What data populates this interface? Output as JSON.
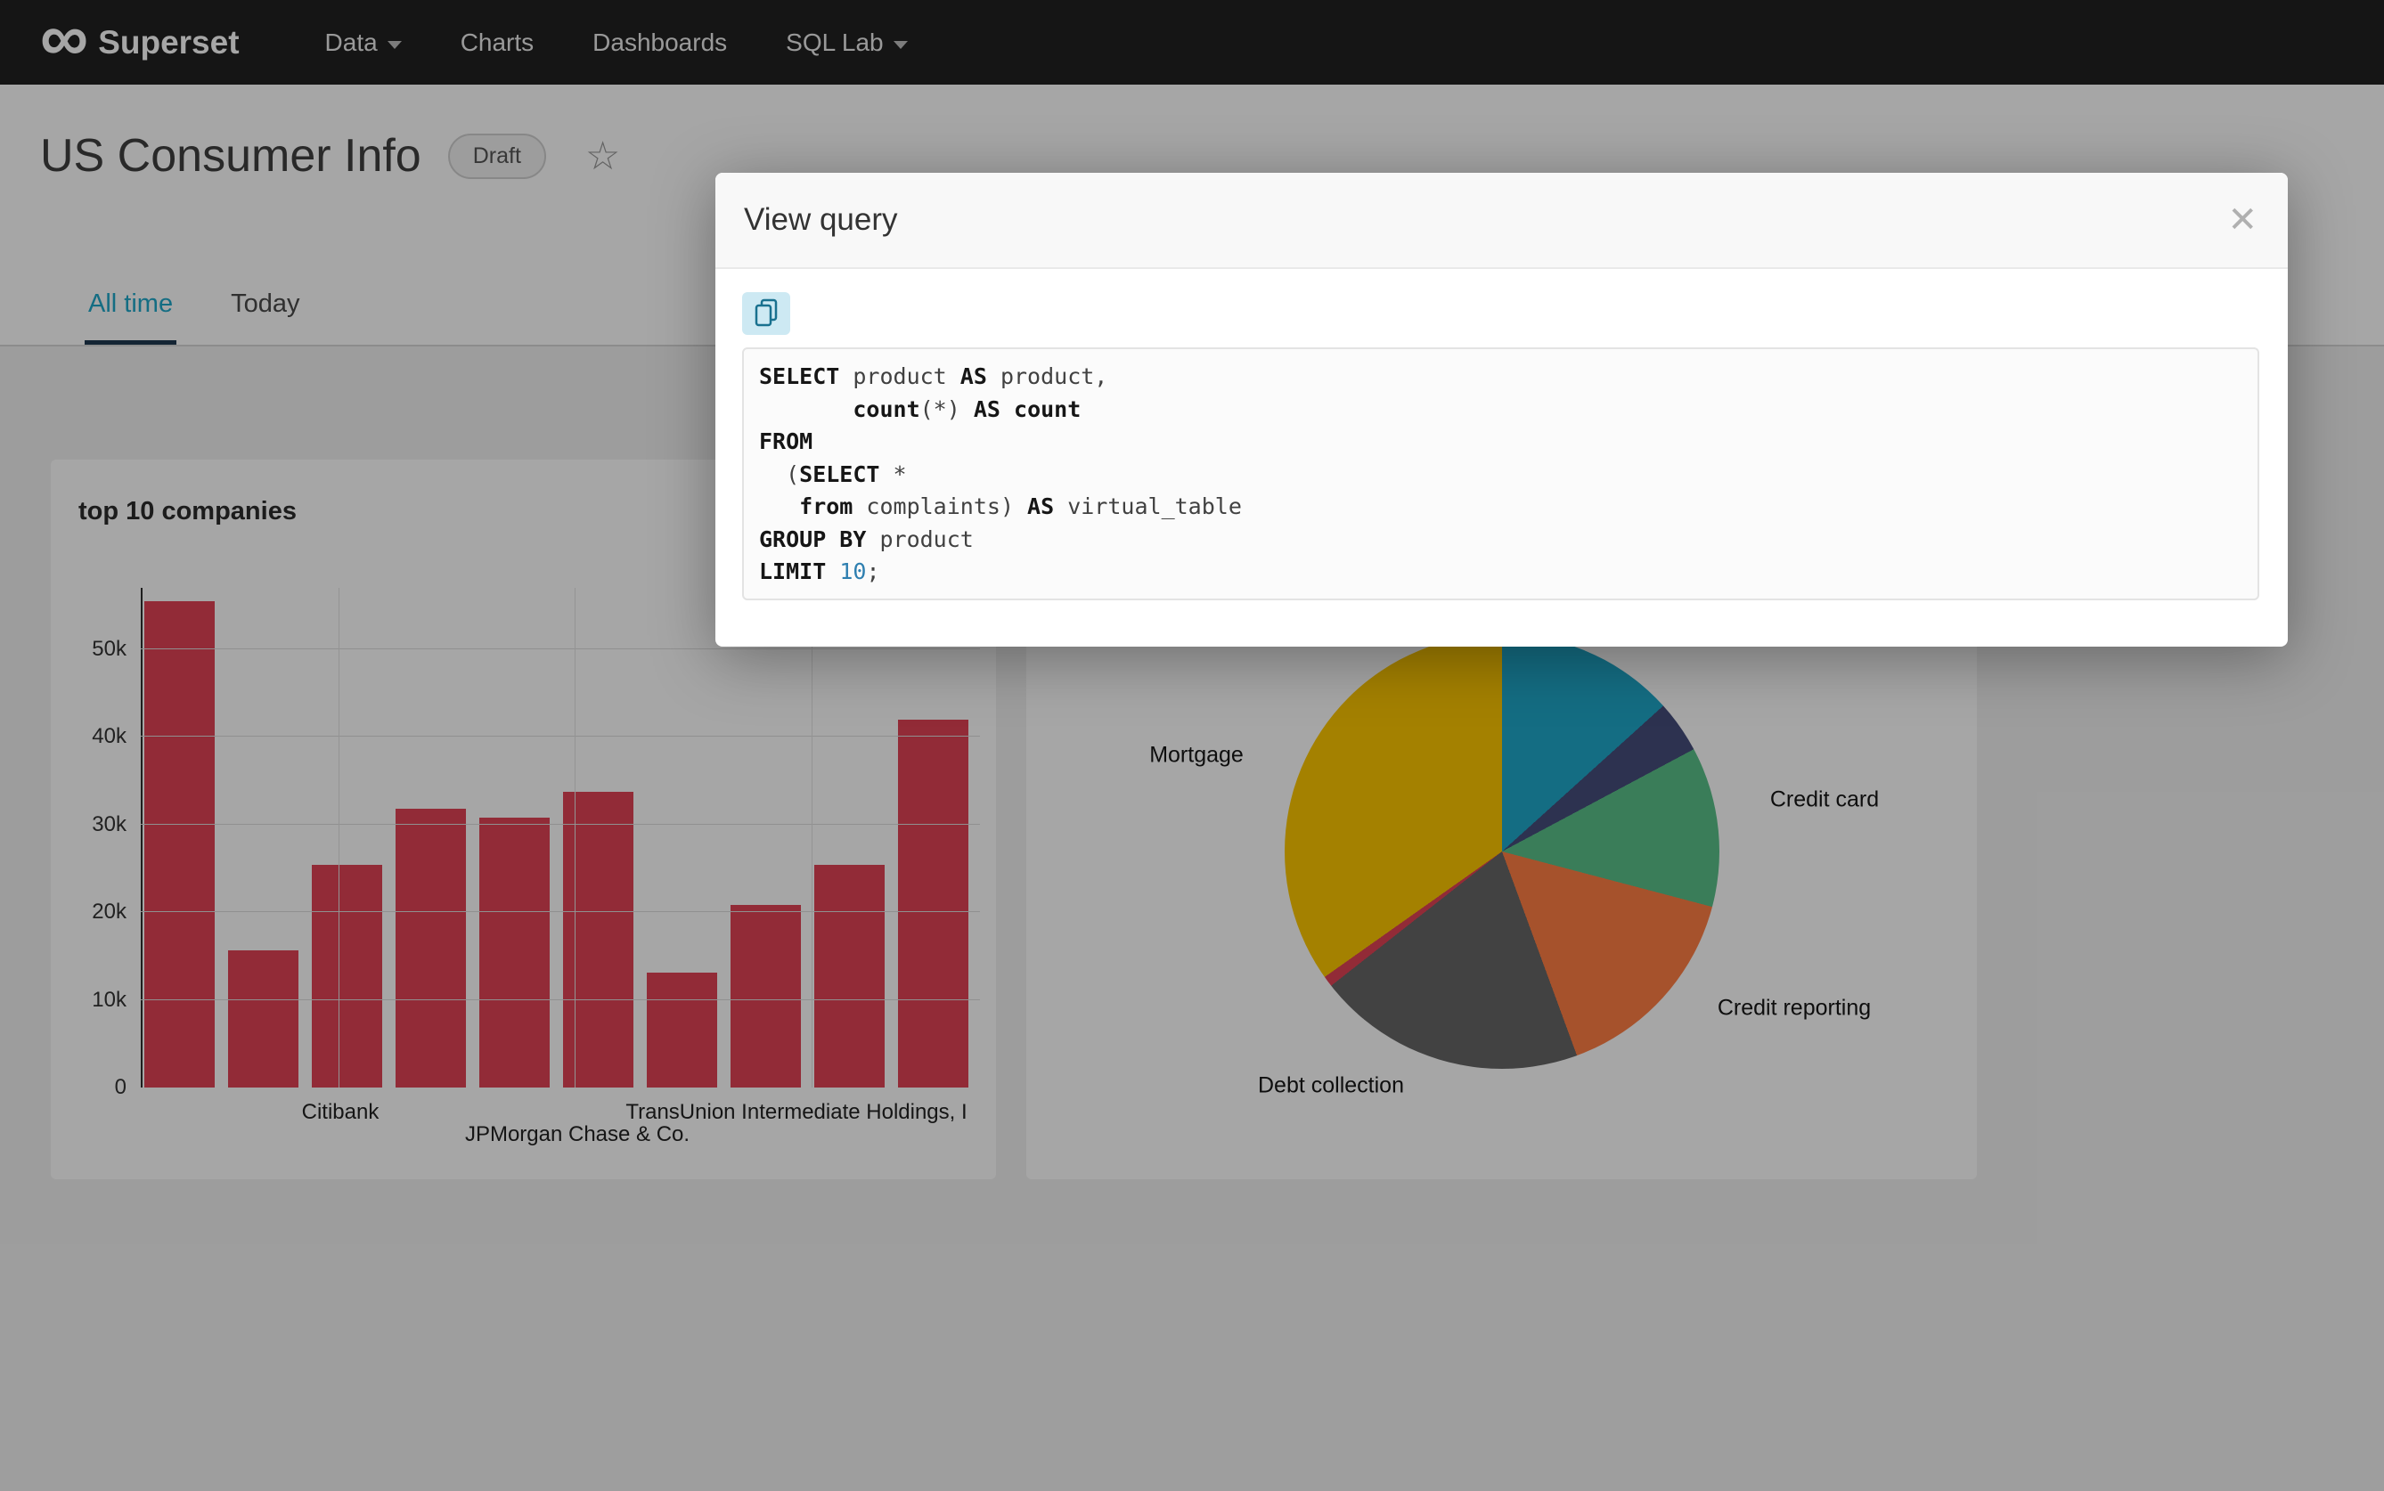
{
  "navbar": {
    "brand": "Superset",
    "logo_glyph": "∞",
    "items": [
      {
        "label": "Data",
        "has_caret": true
      },
      {
        "label": "Charts",
        "has_caret": false
      },
      {
        "label": "Dashboards",
        "has_caret": false
      },
      {
        "label": "SQL Lab",
        "has_caret": true
      }
    ]
  },
  "header": {
    "title": "US Consumer Info",
    "status_badge": "Draft",
    "star_glyph": "☆"
  },
  "tabs": [
    {
      "label": "All time",
      "active": true
    },
    {
      "label": "Today",
      "active": false
    }
  ],
  "modal": {
    "title": "View query",
    "close_glyph": "✕",
    "sql": {
      "lines": [
        [
          {
            "t": "SELECT",
            "s": "kw"
          },
          {
            "t": " product ",
            "s": "pl"
          },
          {
            "t": "AS",
            "s": "kw"
          },
          {
            "t": " product,",
            "s": "pl"
          }
        ],
        [
          {
            "t": "       ",
            "s": "pl"
          },
          {
            "t": "count",
            "s": "kw"
          },
          {
            "t": "(*) ",
            "s": "pl"
          },
          {
            "t": "AS",
            "s": "kw"
          },
          {
            "t": " ",
            "s": "pl"
          },
          {
            "t": "count",
            "s": "kw"
          }
        ],
        [
          {
            "t": "FROM",
            "s": "kw"
          }
        ],
        [
          {
            "t": "  (",
            "s": "pl"
          },
          {
            "t": "SELECT",
            "s": "kw"
          },
          {
            "t": " *",
            "s": "pl"
          }
        ],
        [
          {
            "t": "   ",
            "s": "pl"
          },
          {
            "t": "from",
            "s": "kw"
          },
          {
            "t": " complaints) ",
            "s": "pl"
          },
          {
            "t": "AS",
            "s": "kw"
          },
          {
            "t": " virtual_table",
            "s": "pl"
          }
        ],
        [
          {
            "t": "GROUP BY",
            "s": "kw"
          },
          {
            "t": " product",
            "s": "pl"
          }
        ],
        [
          {
            "t": "LIMIT",
            "s": "kw"
          },
          {
            "t": " ",
            "s": "pl"
          },
          {
            "t": "10",
            "s": "num"
          },
          {
            "t": ";",
            "s": "pl"
          }
        ]
      ]
    }
  },
  "chart_data": [
    {
      "type": "bar",
      "title": "top 10 companies",
      "values": [
        55500,
        15600,
        25400,
        31800,
        30800,
        33700,
        13100,
        20800,
        25400,
        42000
      ],
      "x_tick_labels": [
        "Citibank",
        "JPMorgan Chase & Co.",
        "TransUnion Intermediate Holdings, I"
      ],
      "y_ticks": [
        "0",
        "10k",
        "20k",
        "30k",
        "40k",
        "50k"
      ],
      "ylim": [
        0,
        57000
      ],
      "bar_color": "#E04355",
      "grid": true,
      "legend": "none"
    },
    {
      "type": "pie",
      "slices": [
        {
          "label": "",
          "percent": 13.3,
          "color": "#1FA8C9"
        },
        {
          "label": "",
          "percent": 3.9,
          "color": "#454E7C"
        },
        {
          "label": "Credit card",
          "percent": 11.9,
          "color": "#5AC189"
        },
        {
          "label": "Credit reporting",
          "percent": 15.3,
          "color": "#FF7F44"
        },
        {
          "label": "Debt collection",
          "percent": 20.0,
          "color": "#666666"
        },
        {
          "label": "",
          "percent": 0.8,
          "color": "#E04355"
        },
        {
          "label": "Mortgage",
          "percent": 34.8,
          "color": "#FCC700"
        }
      ],
      "legend": "none"
    }
  ]
}
